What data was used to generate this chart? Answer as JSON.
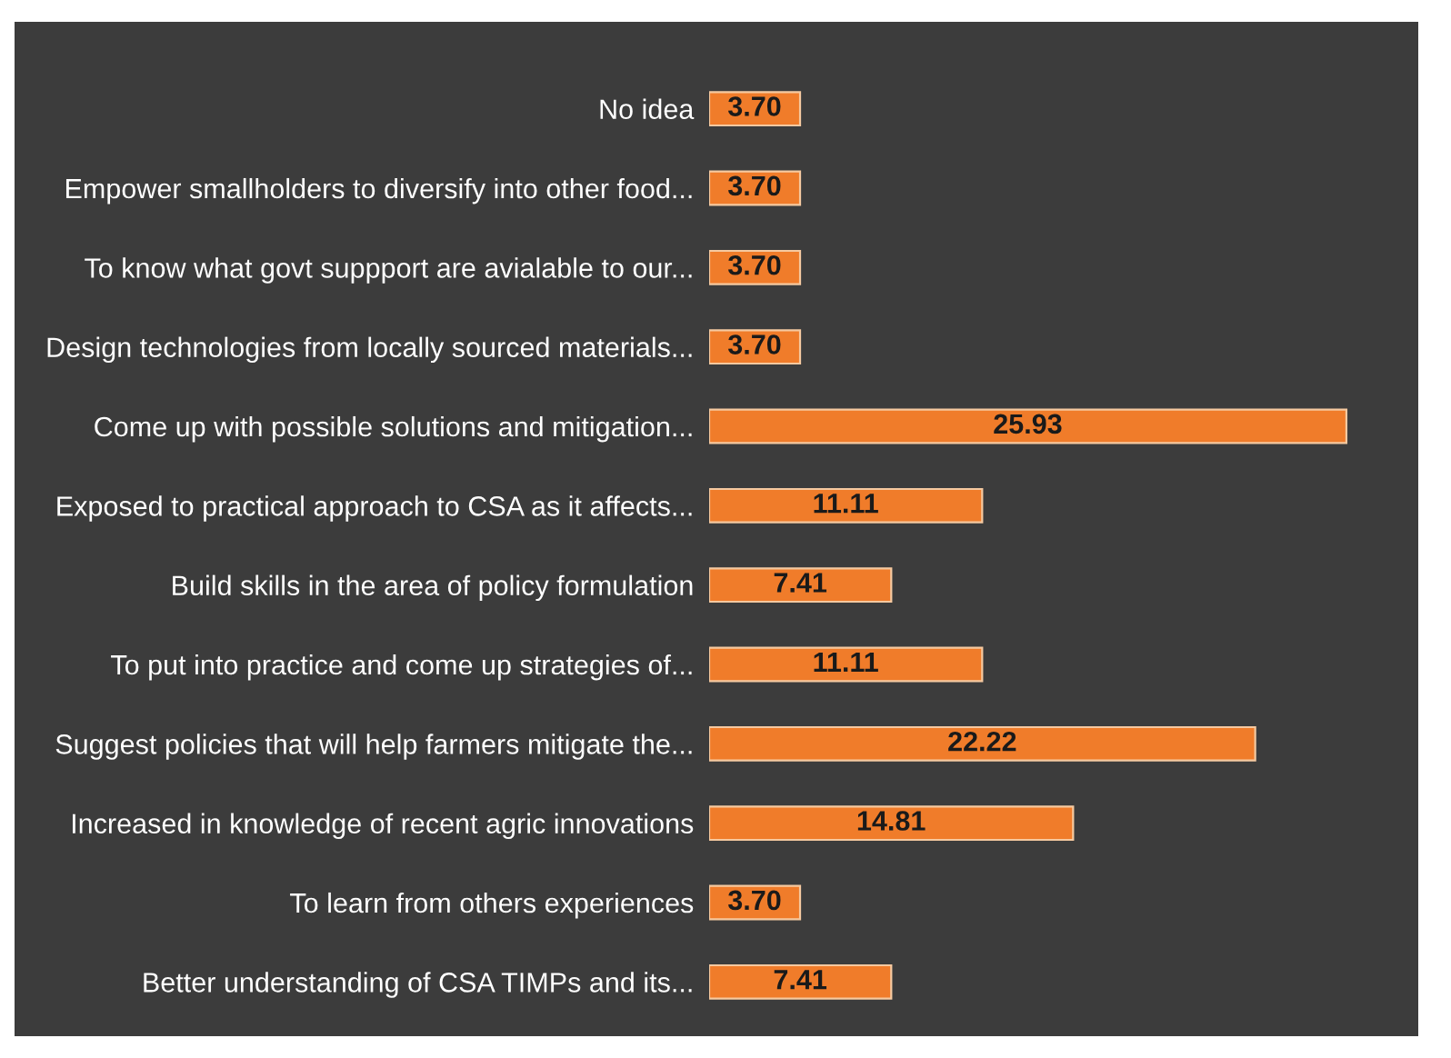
{
  "chart_data": {
    "type": "bar",
    "orientation": "horizontal",
    "categories": [
      "No idea",
      "Empower smallholders to diversify into other food...",
      "To know what govt suppport are avialable to our...",
      "Design technologies from locally sourced materials...",
      "Come up with possible solutions and mitigation...",
      "Exposed to practical approach to CSA as it affects...",
      "Build skills in the area of policy formulation",
      "To put into practice and come up strategies of...",
      "Suggest policies that will help farmers mitigate the...",
      "Increased in knowledge of recent agric innovations",
      "To learn from others experiences",
      "Better understanding of CSA TIMPs and its..."
    ],
    "values": [
      3.7,
      3.7,
      3.7,
      3.7,
      25.93,
      11.11,
      7.41,
      11.11,
      22.22,
      14.81,
      3.7,
      7.41
    ],
    "value_labels": [
      "3.70",
      "3.70",
      "3.70",
      "3.70",
      "25.93",
      "11.11",
      "7.41",
      "11.11",
      "22.22",
      "14.81",
      "3.70",
      "7.41"
    ],
    "color": "#f07c2a",
    "tick_labels": "y"
  }
}
